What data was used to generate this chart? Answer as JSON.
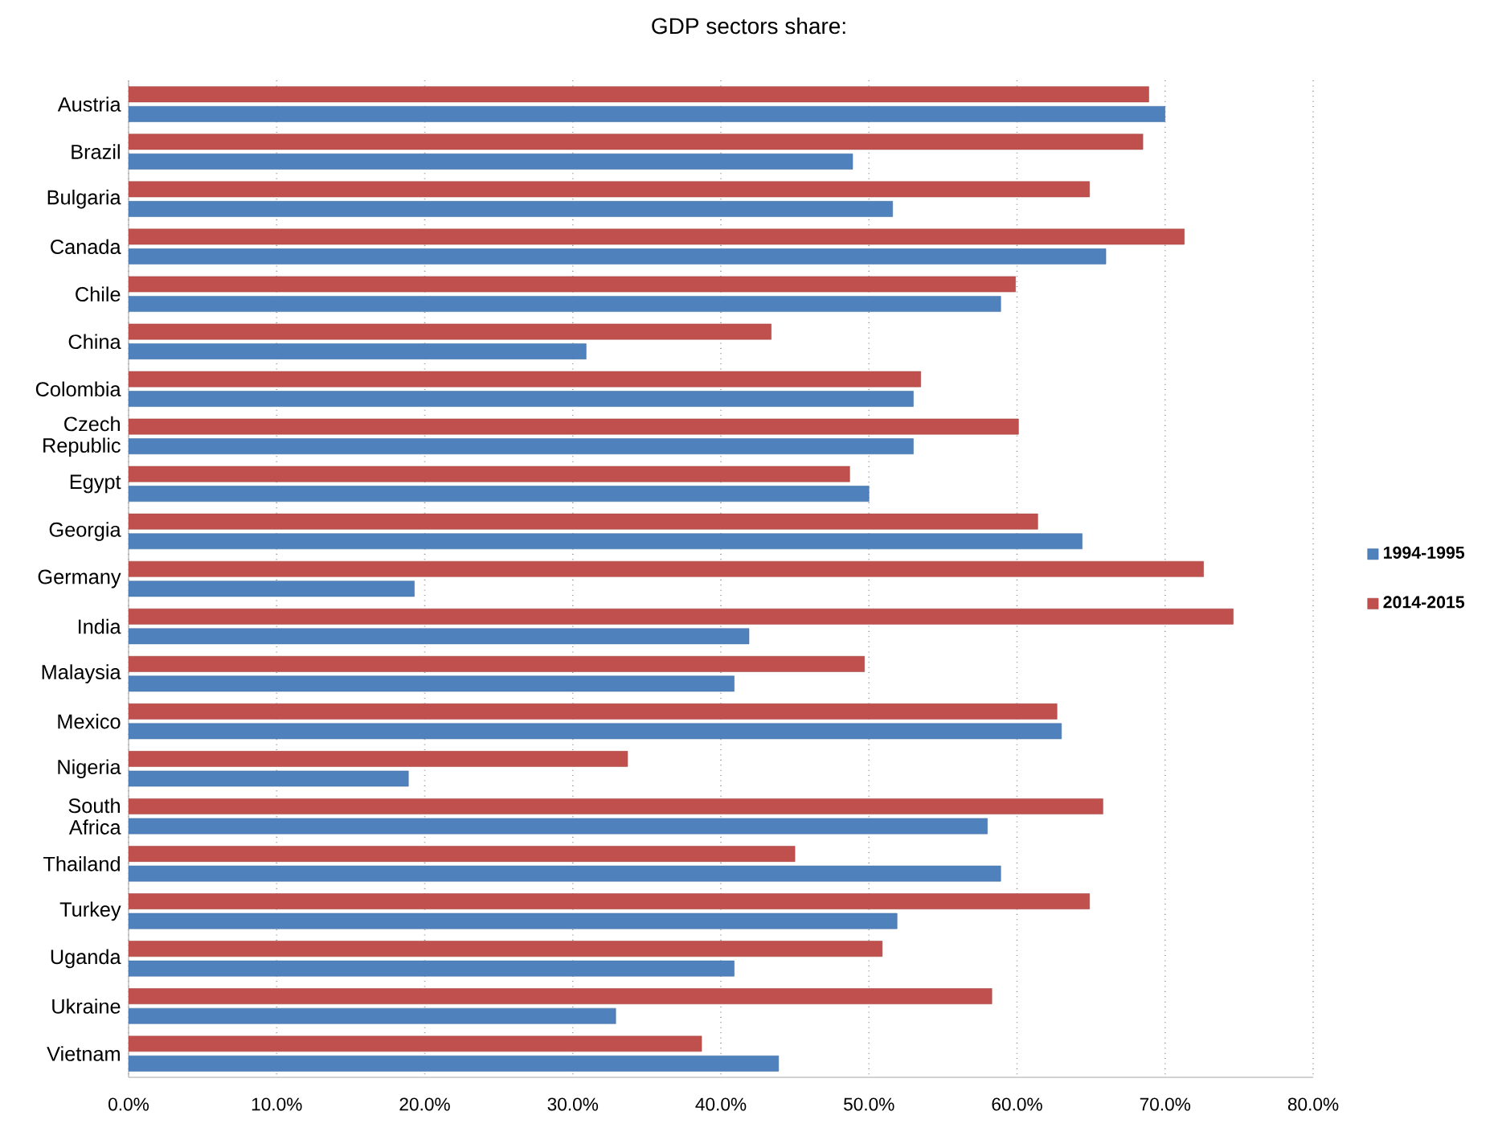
{
  "chart_data": {
    "type": "bar",
    "orientation": "horizontal",
    "title": "GDP sectors share:",
    "categories": [
      "Austria",
      "Brazil",
      "Bulgaria",
      "Canada",
      "Chile",
      "China",
      "Colombia",
      "Czech Republic",
      "Egypt",
      "Georgia",
      "Germany",
      "India",
      "Malaysia",
      "Mexico",
      "Nigeria",
      "South Africa",
      "Thailand",
      "Turkey",
      "Uganda",
      "Ukraine",
      "Vietnam"
    ],
    "series": [
      {
        "name": "1994-1995",
        "color": "#4f81bd",
        "values": [
          70.0,
          48.9,
          51.6,
          66.0,
          58.9,
          30.9,
          53.0,
          53.0,
          50.0,
          64.4,
          19.3,
          41.9,
          40.9,
          63.0,
          18.9,
          58.0,
          58.9,
          51.9,
          40.9,
          32.9,
          43.9
        ]
      },
      {
        "name": "2014-2015",
        "color": "#c0504d",
        "values": [
          68.9,
          68.5,
          64.9,
          71.3,
          59.9,
          43.4,
          53.5,
          60.1,
          48.7,
          61.4,
          72.6,
          74.6,
          49.7,
          62.7,
          33.7,
          65.8,
          45.0,
          64.9,
          50.9,
          58.3,
          38.7
        ]
      }
    ],
    "xlim": [
      0,
      80
    ],
    "xticks": [
      {
        "value": 0,
        "label": "0.0%"
      },
      {
        "value": 10,
        "label": "10.0%"
      },
      {
        "value": 20,
        "label": "20.0%"
      },
      {
        "value": 30,
        "label": "30.0%"
      },
      {
        "value": 40,
        "label": "40.0%"
      },
      {
        "value": 50,
        "label": "50.0%"
      },
      {
        "value": 60,
        "label": "60.0%"
      },
      {
        "value": 70,
        "label": "70.0%"
      },
      {
        "value": 80,
        "label": "80.0%"
      }
    ],
    "grid": "x",
    "legend": "right"
  }
}
